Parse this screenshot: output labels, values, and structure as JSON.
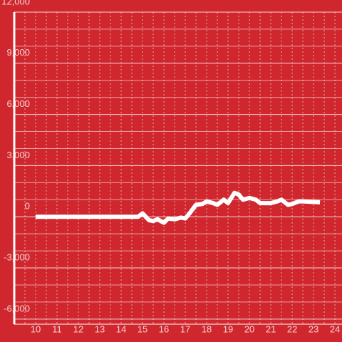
{
  "chart_data": {
    "type": "line",
    "x": [
      10,
      14.8,
      15,
      15.3,
      15.5,
      15.7,
      16,
      16.2,
      16.5,
      16.8,
      17,
      17.2,
      17.5,
      17.8,
      18,
      18.3,
      18.5,
      18.8,
      19,
      19.3,
      19.5,
      19.7,
      20,
      20.3,
      20.5,
      21,
      21.3,
      21.5,
      21.8,
      22,
      22.3,
      22.5,
      23.3
    ],
    "series": [
      {
        "color": "#ffffff",
        "values": [
          0,
          0,
          200,
          -200,
          -250,
          -150,
          -350,
          -100,
          -150,
          -50,
          -100,
          200,
          700,
          750,
          900,
          800,
          700,
          1000,
          800,
          1400,
          1300,
          1000,
          1100,
          1000,
          800,
          800,
          900,
          1000,
          700,
          750,
          900,
          900,
          850
        ]
      }
    ],
    "xlim": [
      9,
      24.33
    ],
    "xticks": [
      10,
      11,
      12,
      13,
      14,
      15,
      16,
      17,
      18,
      19,
      20,
      21,
      22,
      23,
      24
    ],
    "xminorticks": [
      9.5,
      10.5,
      11.5,
      12.5,
      13.5,
      14.5,
      15.5,
      16.5,
      17.5,
      18.5,
      19.5,
      20.5,
      21.5,
      22.5,
      23.5
    ],
    "ylim": [
      -6300,
      12000
    ],
    "yticks": [
      {
        "value": -6000,
        "label": "-6,000"
      },
      {
        "value": -3000,
        "label": "-3,000"
      },
      0,
      {
        "value": 3000,
        "label": "3,000"
      },
      {
        "value": 6000,
        "label": "6,000"
      },
      {
        "value": 9000,
        "label": "9,000"
      },
      {
        "value": 12000,
        "label": "12,000"
      }
    ],
    "yminorticks": [
      -5000,
      -4000,
      -2000,
      -1000,
      1000,
      2000,
      4000,
      5000,
      7000,
      8000,
      10000,
      11000
    ],
    "grid": true
  }
}
